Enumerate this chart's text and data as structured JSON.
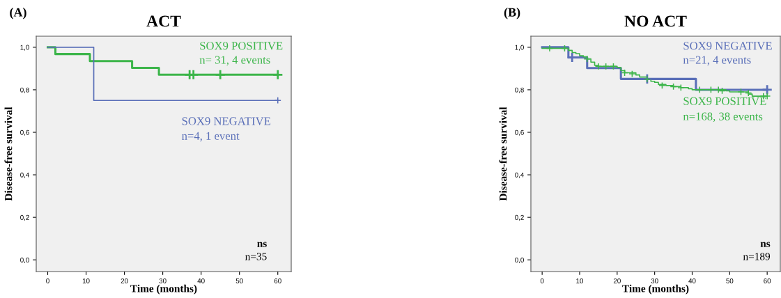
{
  "chart_data": [
    {
      "type": "step",
      "title": "ACT",
      "xlabel": "Time (months)",
      "ylabel": "Disease-free survival",
      "annotations": [
        "(A)",
        "n= 31, 4 events",
        "n=4, 1 event",
        "ns",
        "n=35"
      ],
      "xlim": [
        -3,
        63.5
      ],
      "ylim": [
        -0.055,
        1.052
      ],
      "xticks": [
        0,
        10,
        20,
        30,
        40,
        50,
        60
      ],
      "yticks": [
        {
          "value": 0,
          "label": "0,0"
        },
        {
          "value": 0.2,
          "label": "0,2"
        },
        {
          "value": 0.4,
          "label": "0,4"
        },
        {
          "value": 0.6,
          "label": "0,6"
        },
        {
          "value": 0.8,
          "label": "0,8"
        },
        {
          "value": 1,
          "label": "1,0"
        }
      ],
      "grid": false,
      "legend": false,
      "line_style": "solid",
      "series": [
        {
          "name": "SOX9 POSITIVE",
          "color": "#3cb54a",
          "x": [
            0,
            2,
            11,
            22,
            29,
            60
          ],
          "values": [
            1,
            0.968,
            0.935,
            0.903,
            0.871,
            0.871
          ]
        },
        {
          "name": "SOX9 NEGATIVE",
          "color": "#5a6fb8",
          "x": [
            0,
            12,
            60
          ],
          "values": [
            1,
            0.75,
            0.75
          ]
        },
        {
          "type": "scatter",
          "marker": "cross",
          "color": "#3cb54a",
          "x": [
            37,
            38,
            45,
            60
          ],
          "values": [
            0.871,
            0.871,
            0.871,
            0.871
          ]
        },
        {
          "type": "scatter",
          "marker": "cross",
          "color": "#5a6fb8",
          "x": [
            60
          ],
          "values": [
            0.75
          ]
        }
      ]
    },
    {
      "type": "step",
      "title": "NO ACT",
      "xlabel": "Time (months)",
      "ylabel": "Disease-free survival",
      "annotations": [
        "(B)",
        "n=21, 4 events",
        "n=168, 38 events",
        "ns",
        "n=189"
      ],
      "xlim": [
        -3,
        63.5
      ],
      "ylim": [
        -0.055,
        1.052
      ],
      "xticks": [
        0,
        10,
        20,
        30,
        40,
        50,
        60
      ],
      "yticks": [
        {
          "value": 0,
          "label": "0,0"
        },
        {
          "value": 0.2,
          "label": "0,2"
        },
        {
          "value": 0.4,
          "label": "0,4"
        },
        {
          "value": 0.6,
          "label": "0,6"
        },
        {
          "value": 0.8,
          "label": "0,8"
        },
        {
          "value": 1,
          "label": "1,0"
        }
      ],
      "grid": false,
      "legend": false,
      "line_style": "solid",
      "series": [
        {
          "name": "SOX9 NEGATIVE",
          "color": "#5a6fb8",
          "x": [
            0,
            7,
            12,
            21,
            41,
            60
          ],
          "values": [
            1,
            0.952,
            0.902,
            0.851,
            0.8,
            0.8
          ]
        },
        {
          "name": "SOX9 POSITIVE",
          "color": "#3cb54a",
          "x": [
            0,
            7,
            8,
            9,
            10,
            11,
            12,
            13,
            14,
            15,
            20,
            21,
            22,
            25,
            26,
            28,
            29,
            30,
            31,
            33,
            35,
            37,
            39,
            40,
            48,
            49,
            50,
            55,
            56,
            60
          ],
          "values": [
            0.995,
            0.985,
            0.975,
            0.97,
            0.96,
            0.955,
            0.945,
            0.93,
            0.915,
            0.91,
            0.905,
            0.89,
            0.88,
            0.87,
            0.86,
            0.85,
            0.84,
            0.835,
            0.825,
            0.82,
            0.815,
            0.81,
            0.805,
            0.8,
            0.8,
            0.795,
            0.79,
            0.78,
            0.77,
            0.77
          ]
        },
        {
          "type": "scatter",
          "marker": "cross",
          "color": "#5a6fb8",
          "x": [
            8,
            28,
            60
          ],
          "values": [
            0.952,
            0.851,
            0.8
          ]
        },
        {
          "type": "scatter",
          "marker": "cross",
          "color": "#3cb54a",
          "x": [
            2,
            6,
            12,
            15,
            17,
            19,
            22,
            24,
            28,
            32,
            35,
            37,
            42,
            45,
            47,
            48,
            53,
            55,
            59,
            60
          ],
          "values": [
            0.995,
            0.995,
            0.945,
            0.91,
            0.91,
            0.91,
            0.88,
            0.875,
            0.85,
            0.82,
            0.815,
            0.81,
            0.8,
            0.8,
            0.8,
            0.795,
            0.79,
            0.785,
            0.77,
            0.77
          ]
        }
      ]
    }
  ]
}
